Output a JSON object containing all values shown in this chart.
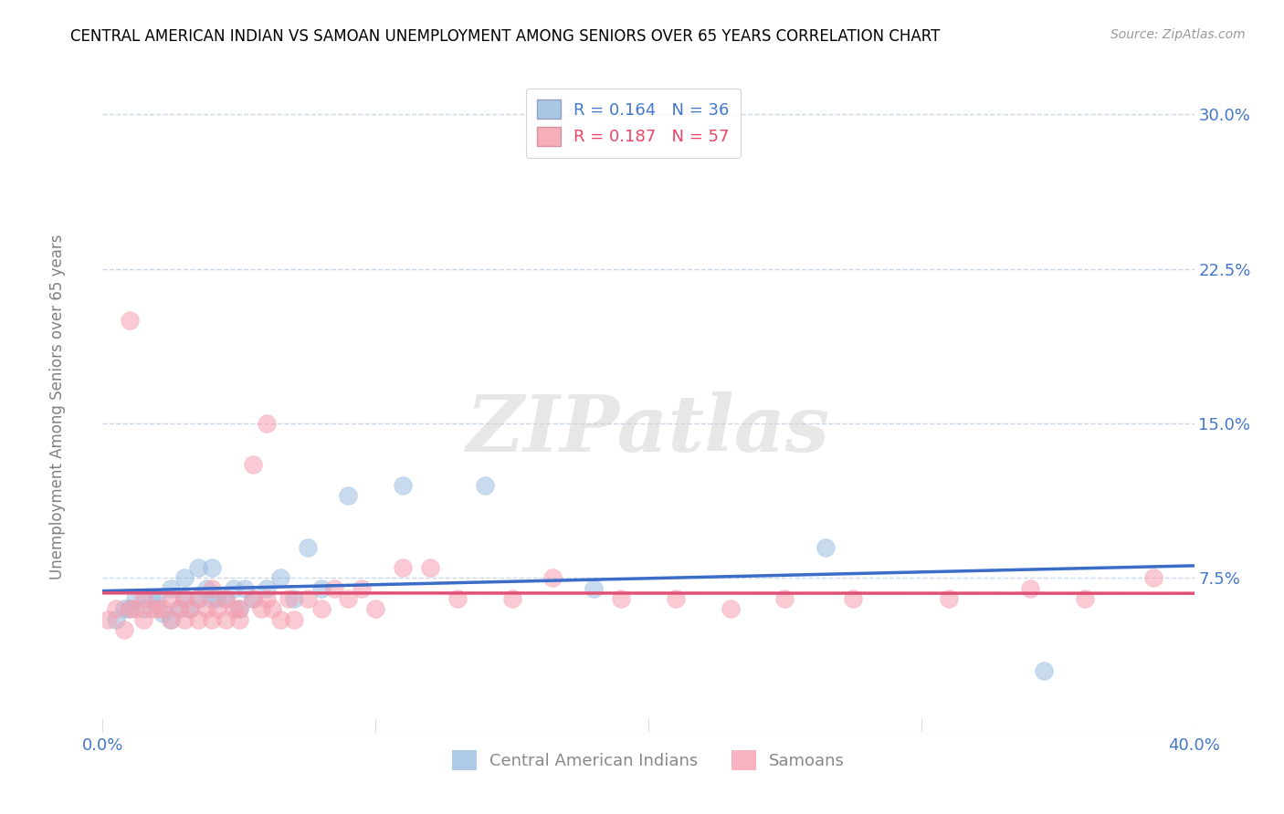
{
  "title": "CENTRAL AMERICAN INDIAN VS SAMOAN UNEMPLOYMENT AMONG SENIORS OVER 65 YEARS CORRELATION CHART",
  "source": "Source: ZipAtlas.com",
  "ylabel": "Unemployment Among Seniors over 65 years",
  "xlim": [
    0.0,
    0.4
  ],
  "ylim": [
    0.0,
    0.32
  ],
  "yticks": [
    0.075,
    0.15,
    0.225,
    0.3
  ],
  "xticks": [
    0.0,
    0.1,
    0.2,
    0.3,
    0.4
  ],
  "r_blue": 0.164,
  "n_blue": 36,
  "r_pink": 0.187,
  "n_pink": 57,
  "legend_blue_label": "Central American Indians",
  "legend_pink_label": "Samoans",
  "blue_color": "#9BBDE0",
  "pink_color": "#F5A0B0",
  "line_blue_color": "#3B6CC8",
  "line_pink_color": "#E05075",
  "text_blue_color": "#4477CC",
  "text_pink_color": "#EE4466",
  "watermark_text": "ZIPatlas",
  "blue_scatter_x": [
    0.005,
    0.008,
    0.01,
    0.012,
    0.015,
    0.018,
    0.02,
    0.022,
    0.025,
    0.025,
    0.028,
    0.03,
    0.03,
    0.032,
    0.035,
    0.035,
    0.038,
    0.04,
    0.04,
    0.042,
    0.045,
    0.048,
    0.05,
    0.052,
    0.055,
    0.06,
    0.065,
    0.07,
    0.075,
    0.08,
    0.09,
    0.11,
    0.14,
    0.18,
    0.265,
    0.345
  ],
  "blue_scatter_y": [
    0.055,
    0.06,
    0.06,
    0.065,
    0.06,
    0.065,
    0.065,
    0.058,
    0.055,
    0.07,
    0.06,
    0.065,
    0.075,
    0.06,
    0.065,
    0.08,
    0.07,
    0.065,
    0.08,
    0.065,
    0.065,
    0.07,
    0.06,
    0.07,
    0.065,
    0.07,
    0.075,
    0.065,
    0.09,
    0.07,
    0.115,
    0.12,
    0.12,
    0.07,
    0.09,
    0.03
  ],
  "pink_scatter_x": [
    0.002,
    0.005,
    0.008,
    0.01,
    0.01,
    0.012,
    0.015,
    0.015,
    0.018,
    0.02,
    0.022,
    0.025,
    0.025,
    0.028,
    0.03,
    0.03,
    0.032,
    0.035,
    0.035,
    0.038,
    0.04,
    0.04,
    0.042,
    0.045,
    0.045,
    0.048,
    0.05,
    0.05,
    0.055,
    0.055,
    0.058,
    0.06,
    0.06,
    0.062,
    0.065,
    0.068,
    0.07,
    0.075,
    0.08,
    0.085,
    0.09,
    0.095,
    0.1,
    0.11,
    0.12,
    0.13,
    0.15,
    0.165,
    0.19,
    0.21,
    0.23,
    0.25,
    0.275,
    0.31,
    0.34,
    0.36,
    0.385
  ],
  "pink_scatter_y": [
    0.055,
    0.06,
    0.05,
    0.06,
    0.2,
    0.06,
    0.055,
    0.065,
    0.06,
    0.06,
    0.06,
    0.055,
    0.065,
    0.06,
    0.055,
    0.065,
    0.06,
    0.055,
    0.065,
    0.06,
    0.055,
    0.07,
    0.06,
    0.055,
    0.065,
    0.06,
    0.055,
    0.06,
    0.13,
    0.065,
    0.06,
    0.065,
    0.15,
    0.06,
    0.055,
    0.065,
    0.055,
    0.065,
    0.06,
    0.07,
    0.065,
    0.07,
    0.06,
    0.08,
    0.08,
    0.065,
    0.065,
    0.075,
    0.065,
    0.065,
    0.06,
    0.065,
    0.065,
    0.065,
    0.07,
    0.065,
    0.075
  ]
}
